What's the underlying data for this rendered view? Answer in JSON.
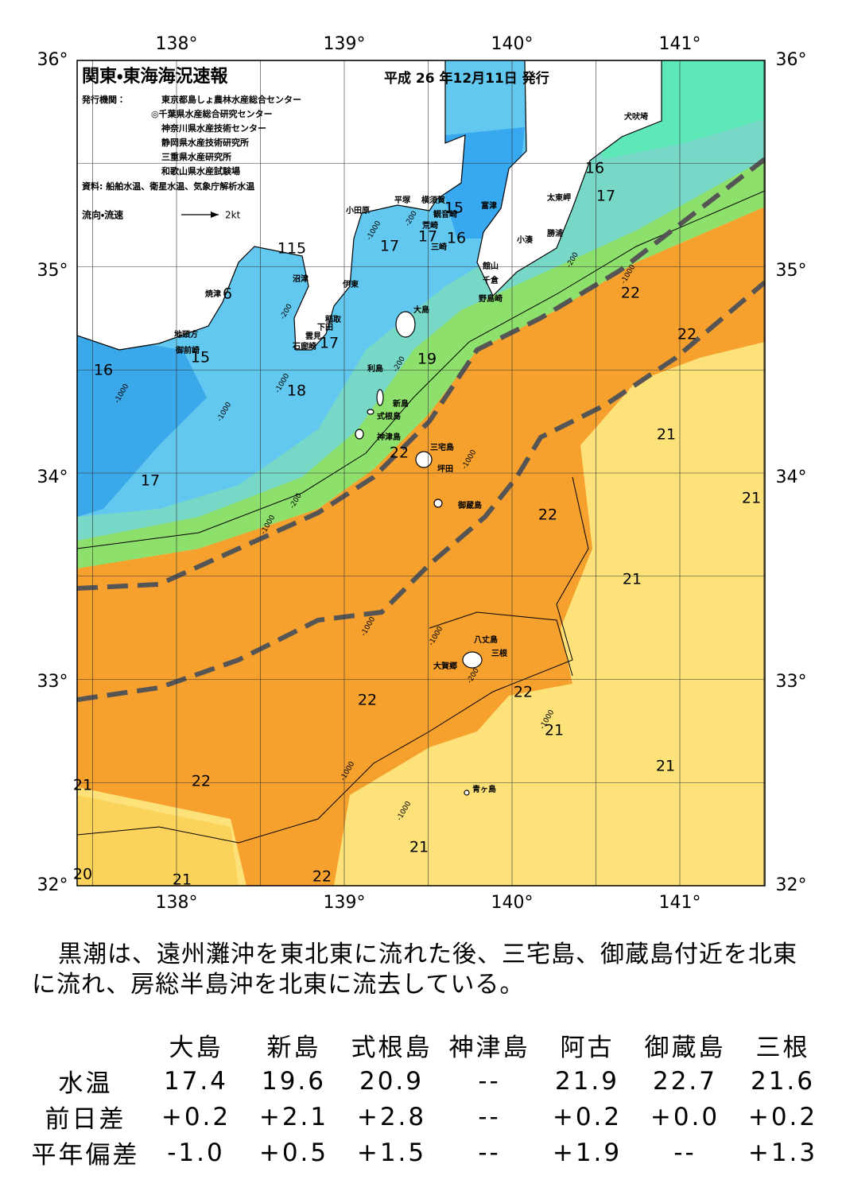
{
  "header": {
    "title": "関東・東海海況速報",
    "date": "平成 26 年12月11日 発行"
  },
  "publishers": {
    "label": "発行機関：",
    "list": [
      "東京都島しょ農林水産総合センター",
      "◎千葉県水産総合研究センター",
      "神奈川県水産技術センター",
      "静岡県水産技術研究所",
      "三重県水産研究所",
      "和歌山県水産試験場"
    ]
  },
  "source": "資料: 船舶水温、衛星水温、気象庁解析水温",
  "legend": {
    "label": "流向・流速",
    "speed": "2kt"
  },
  "axes": {
    "lat": [
      "36°",
      "35°",
      "34°",
      "33°",
      "32°"
    ],
    "lon": [
      "138°",
      "139°",
      "140°",
      "141°"
    ]
  },
  "places": [
    "犬吠埼",
    "太東岬",
    "富津",
    "横須賀",
    "平塚",
    "小田原",
    "観音崎",
    "荒崎",
    "三崎",
    "勝浦",
    "小湊",
    "館山",
    "千倉",
    "野島崎",
    "沼津",
    "伊東",
    "焼津",
    "稲取",
    "下田",
    "雲見",
    "石廊崎",
    "地頭方",
    "御前崎",
    "大島",
    "利島",
    "新島",
    "式根島",
    "神津島",
    "三宅島",
    "坪田",
    "御蔵島",
    "八丈島",
    "三根",
    "大賀郷",
    "青ヶ島"
  ],
  "temperatures": [
    "16",
    "17",
    "15",
    "17",
    "16",
    "17",
    "115",
    "6",
    "15",
    "16",
    "17",
    "18",
    "19",
    "22",
    "22",
    "21",
    "22",
    "17",
    "21",
    "22",
    "21",
    "22",
    "22",
    "21",
    "21",
    "22",
    "21",
    "21",
    "20",
    "21",
    "22"
  ],
  "depths": [
    "-200",
    "-1000",
    "-200",
    "-1000",
    "-200",
    "-1000",
    "-1000",
    "-1000",
    "-200",
    "-200",
    "-1000",
    "-1000",
    "-1000",
    "-1000",
    "-200",
    "-1000",
    "-1000",
    "-1000"
  ],
  "summary": "黒潮は、遠州灘沖を東北東に流れた後、三宅島、御蔵島付近を北東に流れ、房総半島沖を北東に流去している。",
  "table": {
    "columns": [
      "大島",
      "新島",
      "式根島",
      "神津島",
      "阿古",
      "御蔵島",
      "三根"
    ],
    "rows": [
      {
        "label": "水温",
        "values": [
          "17.4",
          "19.6",
          "20.9",
          "--",
          "21.9",
          "22.7",
          "21.6"
        ]
      },
      {
        "label": "前日差",
        "values": [
          "+0.2",
          "+2.1",
          "+2.8",
          "--",
          "+0.2",
          "+0.0",
          "+0.2"
        ]
      },
      {
        "label": "平年偏差",
        "values": [
          "-1.0",
          "+0.5",
          "+1.5",
          "--",
          "+1.9",
          "--",
          "+1.3"
        ]
      }
    ]
  }
}
